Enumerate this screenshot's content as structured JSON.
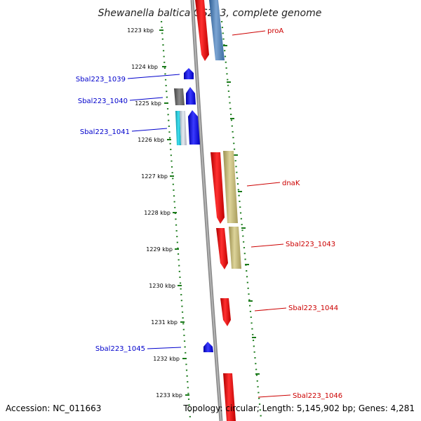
{
  "title": "Shewanella baltica OS223, complete genome",
  "footer": {
    "accession": "Accession: NC_011663",
    "topology": "Topology: circular; Length: 5,145,902 bp; Genes: 4,281"
  },
  "ticks": [
    "1223 kbp",
    "1224 kbp",
    "1225 kbp",
    "1226 kbp",
    "1227 kbp",
    "1228 kbp",
    "1229 kbp",
    "1230 kbp",
    "1231 kbp",
    "1232 kbp",
    "1233 kbp"
  ],
  "gene_labels": {
    "proA": "proA",
    "dnaK": "dnaK",
    "sbal1039": "Sbal223_1039",
    "sbal1040": "Sbal223_1040",
    "sbal1041": "Sbal223_1041",
    "sbal1043": "Sbal223_1043",
    "sbal1044": "Sbal223_1044",
    "sbal1045": "Sbal223_1045",
    "sbal1046": "Sbal223_1046"
  },
  "colors": {
    "forward_strand": "#0000ff",
    "reverse_strand": "#ff0000",
    "cog_blue": "#4f81b8",
    "cog_khaki": "#c8bd7a",
    "cog_gray": "#777777",
    "cog_cyan": "#19c0d0",
    "backbone": "#8c8c8c",
    "tick_dots": "#1a7a1a"
  }
}
